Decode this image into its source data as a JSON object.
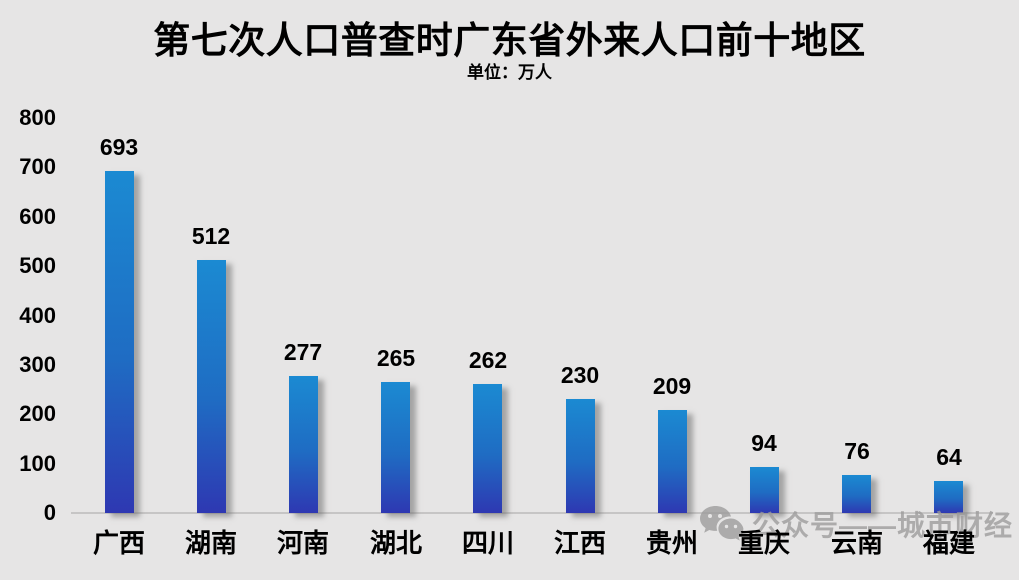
{
  "title": "第七次人口普查时广东省外来人口前十地区",
  "subtitle": "单位：万人",
  "watermark": {
    "icon": "wechat-icon",
    "text": "公众号——城市财经"
  },
  "colors": {
    "background": "#e6e5e5",
    "bar_top": "#1b8ad2",
    "bar_mid": "#1f6cc3",
    "bar_bottom": "#2e38b2",
    "axis_line": "#c6c5c5",
    "label_text": "#000000",
    "watermark": "#9c9b9b"
  },
  "chart_data": {
    "type": "bar",
    "title": "第七次人口普查时广东省外来人口前十地区",
    "subtitle": "单位：万人",
    "categories": [
      "广西",
      "湖南",
      "河南",
      "湖北",
      "四川",
      "江西",
      "贵州",
      "重庆",
      "云南",
      "福建"
    ],
    "values": [
      693,
      512,
      277,
      265,
      262,
      230,
      209,
      94,
      76,
      64
    ],
    "xlabel": "",
    "ylabel": "",
    "ylim": [
      0,
      800
    ],
    "yticks": [
      0,
      100,
      200,
      300,
      400,
      500,
      600,
      700,
      800
    ],
    "grid": false,
    "legend": null,
    "data_labels": true
  }
}
